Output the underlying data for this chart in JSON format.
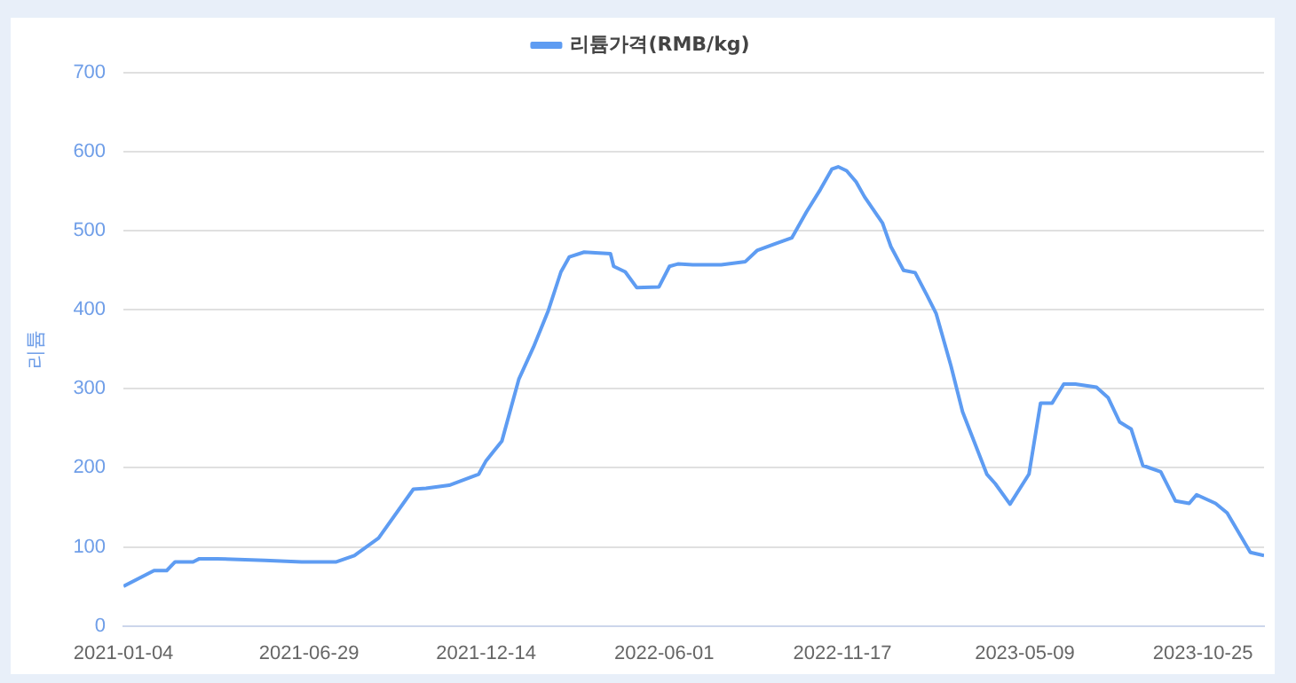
{
  "chart_data": {
    "type": "line",
    "ylabel": "리튬",
    "grid": "y",
    "legend": "top",
    "marker": "none",
    "x": [
      "2021-01-04",
      "2021-02-02",
      "2021-02-14",
      "2021-02-22",
      "2021-03-11",
      "2021-03-17",
      "2021-04-03",
      "2021-05-18",
      "2021-06-22",
      "2021-07-25",
      "2021-08-11",
      "2021-09-03",
      "2021-10-06",
      "2021-10-18",
      "2021-11-09",
      "2021-12-07",
      "2021-12-14",
      "2021-12-29",
      "2022-01-14",
      "2022-01-28",
      "2022-02-11",
      "2022-02-23",
      "2022-03-03",
      "2022-03-17",
      "2022-04-11",
      "2022-04-14",
      "2022-04-25",
      "2022-05-06",
      "2022-05-27",
      "2022-06-06",
      "2022-06-14",
      "2022-06-28",
      "2022-07-25",
      "2022-08-17",
      "2022-08-28",
      "2022-09-13",
      "2022-09-30",
      "2022-10-14",
      "2022-10-27",
      "2022-11-07",
      "2022-11-13",
      "2022-11-21",
      "2022-11-30",
      "2022-12-08",
      "2022-12-25",
      "2023-01-02",
      "2023-01-14",
      "2023-01-25",
      "2023-02-05",
      "2023-02-14",
      "2023-02-28",
      "2023-03-11",
      "2023-04-03",
      "2023-04-11",
      "2023-04-25",
      "2023-05-13",
      "2023-05-24",
      "2023-06-04",
      "2023-06-15",
      "2023-06-26",
      "2023-07-16",
      "2023-07-27",
      "2023-08-07",
      "2023-08-18",
      "2023-08-29",
      "2023-09-15",
      "2023-09-29",
      "2023-10-12",
      "2023-10-19",
      "2023-11-06",
      "2023-11-17",
      "2023-12-09",
      "2023-12-22"
    ],
    "series": [
      {
        "name": "리튬가격(RMB/kg)",
        "color": "#5e9cf2",
        "values": [
          50,
          70,
          70,
          81,
          81,
          85,
          85,
          83,
          81,
          81,
          89,
          111,
          173,
          174,
          178,
          192,
          209,
          234,
          312,
          353,
          399,
          448,
          467,
          473,
          471,
          455,
          448,
          428,
          429,
          455,
          458,
          457,
          457,
          461,
          475,
          483,
          491,
          524,
          552,
          578,
          581,
          576,
          562,
          543,
          510,
          480,
          450,
          447,
          419,
          395,
          329,
          271,
          192,
          180,
          154,
          192,
          282,
          282,
          306,
          306,
          302,
          289,
          258,
          249,
          203,
          195,
          158,
          155,
          166,
          155,
          143,
          93,
          89
        ]
      }
    ],
    "xlim": [
      "2021-01-04",
      "2023-12-22"
    ],
    "xticks": [
      "2021-01-04",
      "2021-06-29",
      "2021-12-14",
      "2022-06-01",
      "2022-11-17",
      "2023-05-09",
      "2023-10-25"
    ],
    "ylim": [
      0,
      700
    ],
    "yticks": [
      0,
      100,
      200,
      300,
      400,
      500,
      600,
      700
    ]
  }
}
